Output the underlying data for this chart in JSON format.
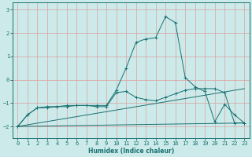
{
  "xlabel": "Humidex (Indice chaleur)",
  "xlim": [
    -0.5,
    23.5
  ],
  "ylim": [
    -2.5,
    3.3
  ],
  "yticks": [
    -2,
    -1,
    0,
    1,
    2,
    3
  ],
  "xticks": [
    0,
    1,
    2,
    3,
    4,
    5,
    6,
    7,
    8,
    9,
    10,
    11,
    12,
    13,
    14,
    15,
    16,
    17,
    18,
    19,
    20,
    21,
    22,
    23
  ],
  "bg_color": "#cceaea",
  "grid_color": "#dda0a0",
  "line_color": "#1a7070",
  "line1_x": [
    0,
    1,
    2,
    3,
    4,
    5,
    6,
    7,
    8,
    9,
    10,
    11,
    12,
    13,
    14,
    15,
    16,
    17,
    18,
    19,
    20,
    21,
    22,
    23
  ],
  "line1_y": [
    -2.0,
    -1.5,
    -1.2,
    -1.15,
    -1.15,
    -1.1,
    -1.1,
    -1.1,
    -1.1,
    -1.1,
    -0.45,
    0.5,
    1.6,
    1.75,
    1.8,
    2.7,
    2.45,
    0.1,
    -0.3,
    -0.5,
    -1.8,
    -1.05,
    -1.5,
    -1.85
  ],
  "line2_x": [
    0,
    1,
    2,
    3,
    4,
    5,
    6,
    7,
    8,
    9,
    10,
    11,
    12,
    13,
    14,
    15,
    16,
    17,
    18,
    19,
    20,
    21,
    22,
    23
  ],
  "line2_y": [
    -2.0,
    -1.5,
    -1.2,
    -1.2,
    -1.15,
    -1.15,
    -1.1,
    -1.1,
    -1.15,
    -1.15,
    -0.55,
    -0.5,
    -0.75,
    -0.85,
    -0.9,
    -0.75,
    -0.6,
    -0.45,
    -0.38,
    -0.38,
    -0.38,
    -0.55,
    -1.85,
    -1.85
  ],
  "line3_x": [
    0,
    23
  ],
  "line3_y": [
    -2.0,
    -1.85
  ],
  "line4_x": [
    0,
    23
  ],
  "line4_y": [
    -2.0,
    -0.38
  ]
}
